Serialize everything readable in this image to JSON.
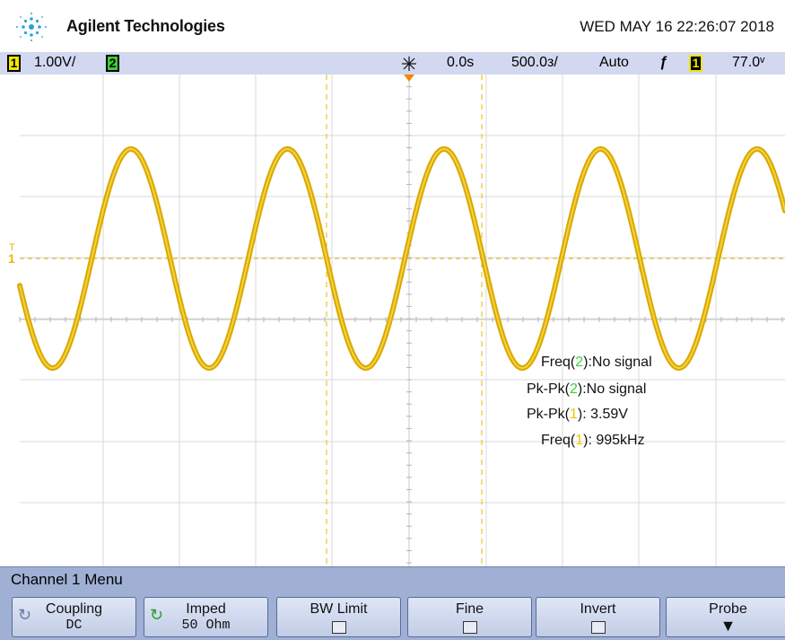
{
  "header": {
    "brand": "Agilent Technologies",
    "datetime": "WED MAY 16 22:26:07 2018"
  },
  "status": {
    "ch1_label": "1",
    "ch1_scale": "1.00V/",
    "ch2_label": "2",
    "time_offset": "0.0s",
    "timebase": "500.0з/",
    "trigger_mode": "Auto",
    "trigger_channel": "1",
    "trigger_level": "77.0ᵛ"
  },
  "trace": {
    "color": "#e8b800",
    "period_divisions": 2.01,
    "amplitude_divisions": 1.795,
    "divisions_x": 10,
    "divisions_y": 8
  },
  "measurements": [
    {
      "name": "Freq",
      "ch": "2",
      "value": ":No signal",
      "ch_color": "green"
    },
    {
      "name": "Pk-Pk",
      "ch": "2",
      "value": ":No signal",
      "ch_color": "green"
    },
    {
      "name": "Pk-Pk",
      "ch": "1",
      "value": ": 3.59V",
      "ch_color": "yellow"
    },
    {
      "name": "Freq",
      "ch": "1",
      "value": ": 995kHz",
      "ch_color": "yellow"
    }
  ],
  "menu": {
    "title": "Channel 1  Menu",
    "softkeys": [
      {
        "label": "Coupling",
        "value": "DC",
        "icon": "rotate-icon"
      },
      {
        "label": "Imped",
        "value": "50 Ohm",
        "icon": "rotate-green-icon"
      },
      {
        "label": "BW Limit",
        "value": "",
        "icon": "checkbox"
      },
      {
        "label": "Fine",
        "value": "",
        "icon": "checkbox"
      },
      {
        "label": "Invert",
        "value": "",
        "icon": "checkbox"
      },
      {
        "label": "Probe",
        "value": "",
        "icon": "arrow-down-icon"
      }
    ]
  }
}
